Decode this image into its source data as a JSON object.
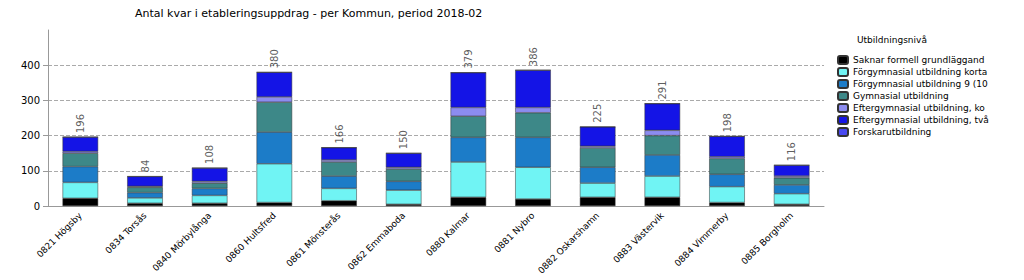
{
  "chart_data": {
    "type": "bar",
    "stacked": true,
    "title": "Antal kvar i etableringsuppdrag - per Kommun, period 2018-02",
    "legend_title": "Utbildningsnivå",
    "legend": "right",
    "grid": true,
    "categories": [
      "0821 Högsby",
      "0834 Torsås",
      "0840 Mörbylånga",
      "0860 Hultsfred",
      "0861 Mönsterås",
      "0862 Emmaboda",
      "0880 Kalmar",
      "0881 Nybro",
      "0882 Oskarshamn",
      "0883 Västervik",
      "0884 Vimmerby",
      "0885 Borgholm"
    ],
    "series": [
      {
        "name": "Saknar formell grundläggand",
        "color": "#000000",
        "values": [
          22,
          8,
          8,
          10,
          15,
          5,
          25,
          20,
          25,
          25,
          10,
          5
        ]
      },
      {
        "name": "Förgymnasial utbildning korta",
        "color": "#70f4f4",
        "values": [
          45,
          15,
          22,
          110,
          35,
          40,
          100,
          90,
          40,
          60,
          45,
          30
        ]
      },
      {
        "name": "Förgymnasial utbildning 9 (10",
        "color": "#1c7cc8",
        "values": [
          45,
          15,
          20,
          90,
          35,
          25,
          70,
          85,
          45,
          60,
          35,
          25
        ]
      },
      {
        "name": "Gymnasial utbildning",
        "color": "#3d8888",
        "values": [
          38,
          15,
          15,
          85,
          40,
          35,
          60,
          70,
          55,
          55,
          45,
          20
        ]
      },
      {
        "name": "Eftergymnasial utbildning, ko",
        "color": "#8c8cf0",
        "values": [
          5,
          3,
          5,
          15,
          6,
          5,
          25,
          15,
          5,
          15,
          5,
          5
        ]
      },
      {
        "name": "Eftergymnasial utbildning, två",
        "color": "#1414e6",
        "values": [
          41,
          28,
          38,
          70,
          35,
          40,
          99,
          106,
          55,
          76,
          58,
          31
        ]
      },
      {
        "name": "Forskarutbildning",
        "color": "#4848f0",
        "values": [
          0,
          0,
          0,
          0,
          0,
          0,
          0,
          0,
          0,
          0,
          0,
          0
        ]
      }
    ],
    "totals": [
      196,
      84,
      108,
      380,
      166,
      150,
      379,
      386,
      225,
      291,
      198,
      116
    ],
    "ylim": [
      0,
      500
    ],
    "yticks": [
      0,
      100,
      200,
      300,
      400
    ]
  }
}
